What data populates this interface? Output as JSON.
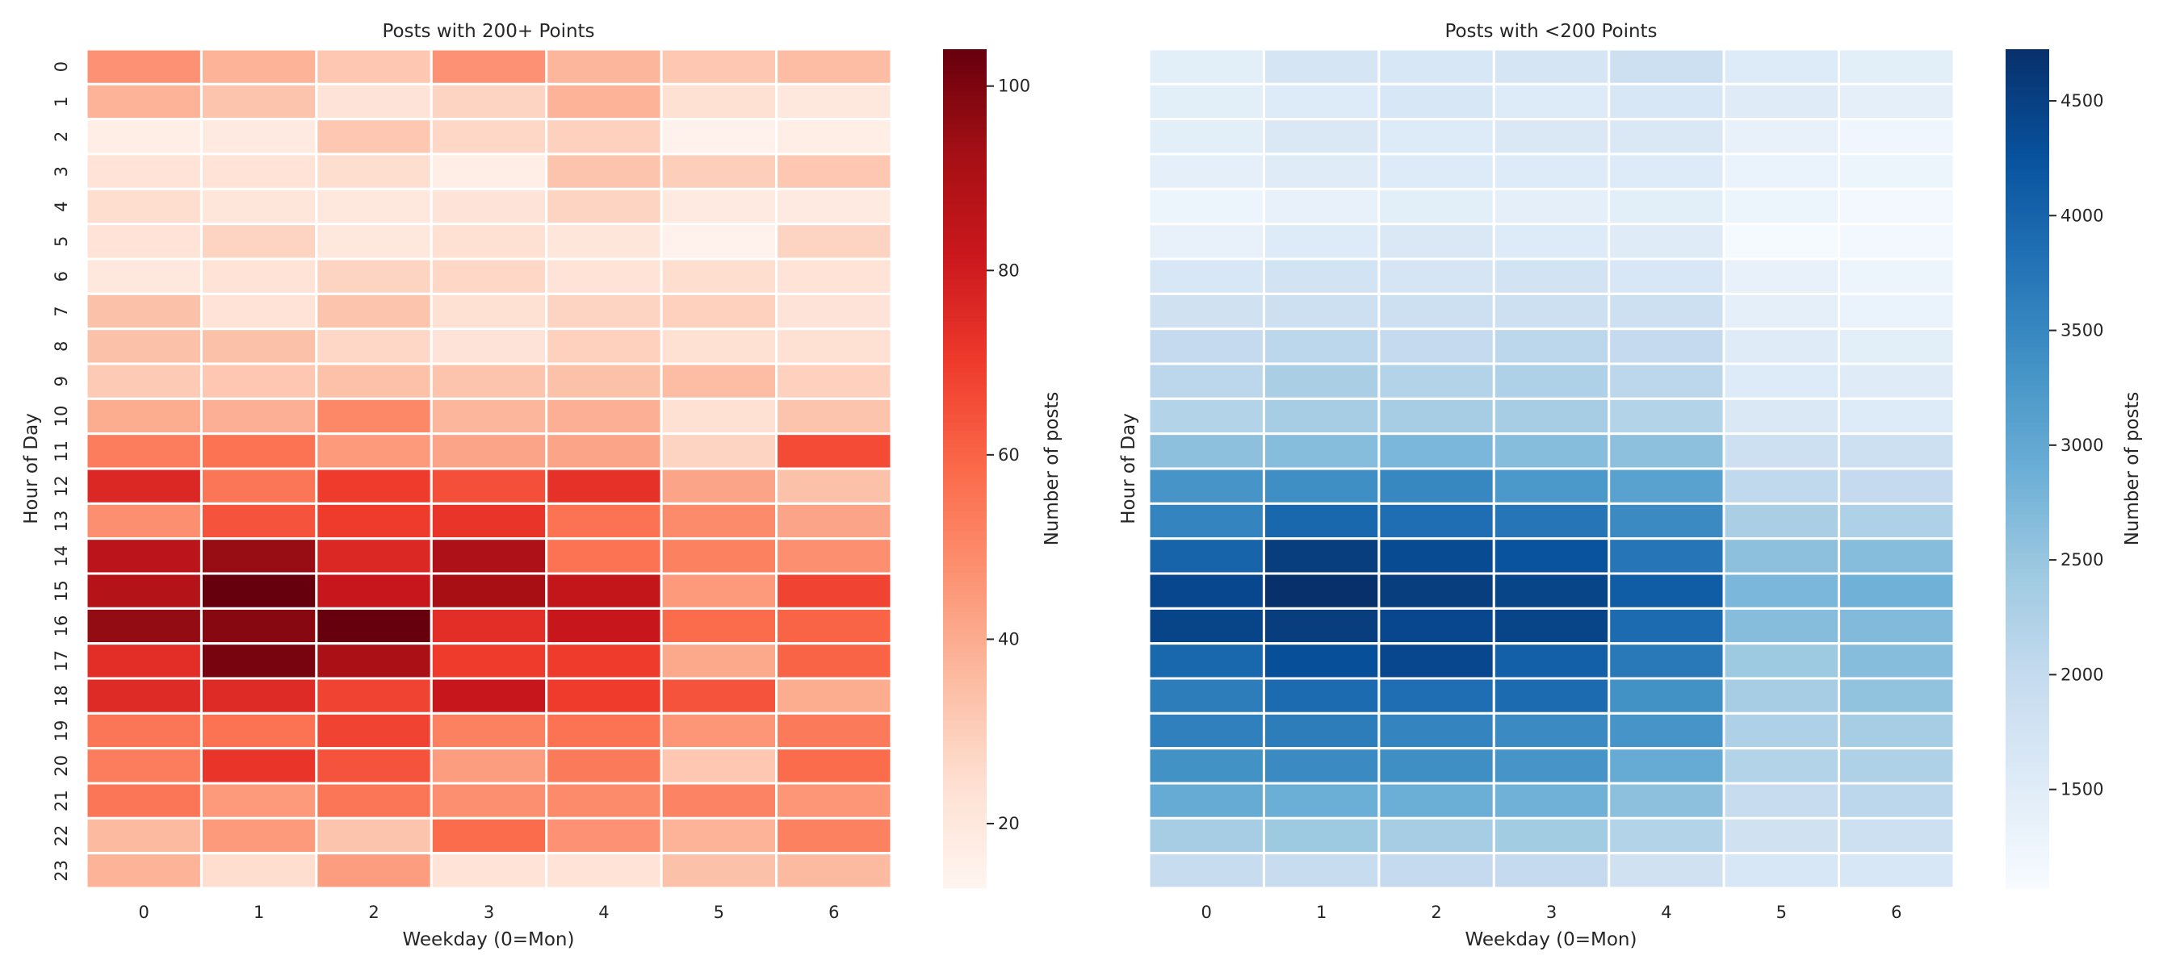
{
  "chart_data": [
    {
      "type": "heatmap",
      "title": "Posts with 200+ Points",
      "xlabel": "Weekday (0=Mon)",
      "ylabel": "Hour of Day",
      "colorbar_label": "Number of posts",
      "colormap": "Reds",
      "colormap_stops": [
        "#fff5f0",
        "#fee0d2",
        "#fcbba1",
        "#fc9272",
        "#fb6a4a",
        "#ef3b2c",
        "#cb181d",
        "#a50f15",
        "#67000d"
      ],
      "vmin": 13,
      "vmax": 104,
      "colorbar_ticks": [
        20,
        40,
        60,
        80,
        100
      ],
      "x_ticks": [
        "0",
        "1",
        "2",
        "3",
        "4",
        "5",
        "6"
      ],
      "y_ticks": [
        "0",
        "1",
        "2",
        "3",
        "4",
        "5",
        "6",
        "7",
        "8",
        "9",
        "10",
        "11",
        "12",
        "13",
        "14",
        "15",
        "16",
        "17",
        "18",
        "19",
        "20",
        "21",
        "22",
        "23"
      ],
      "show_y_ticks": true,
      "values": [
        [
          47,
          38,
          32,
          47,
          37,
          32,
          35
        ],
        [
          38,
          33,
          22,
          28,
          38,
          24,
          20
        ],
        [
          17,
          19,
          32,
          27,
          29,
          15,
          17
        ],
        [
          23,
          23,
          25,
          17,
          33,
          30,
          32
        ],
        [
          25,
          21,
          20,
          22,
          28,
          19,
          19
        ],
        [
          23,
          28,
          20,
          24,
          21,
          15,
          28
        ],
        [
          20,
          23,
          28,
          27,
          23,
          25,
          23
        ],
        [
          34,
          23,
          33,
          24,
          28,
          29,
          22
        ],
        [
          34,
          34,
          27,
          22,
          29,
          24,
          24
        ],
        [
          31,
          32,
          34,
          33,
          34,
          35,
          29
        ],
        [
          40,
          39,
          50,
          37,
          39,
          24,
          33
        ],
        [
          53,
          56,
          45,
          42,
          42,
          28,
          66
        ],
        [
          76,
          55,
          70,
          65,
          73,
          42,
          34
        ],
        [
          48,
          64,
          70,
          72,
          56,
          49,
          42
        ],
        [
          86,
          95,
          76,
          90,
          56,
          52,
          48
        ],
        [
          88,
          104,
          82,
          92,
          84,
          45,
          68
        ],
        [
          96,
          98,
          104,
          74,
          82,
          58,
          60
        ],
        [
          74,
          101,
          91,
          70,
          70,
          41,
          60
        ],
        [
          75,
          75,
          68,
          82,
          70,
          64,
          40
        ],
        [
          55,
          56,
          68,
          52,
          56,
          46,
          54
        ],
        [
          53,
          72,
          64,
          44,
          54,
          32,
          58
        ],
        [
          55,
          45,
          55,
          48,
          49,
          51,
          46
        ],
        [
          36,
          45,
          33,
          58,
          47,
          38,
          52
        ],
        [
          38,
          25,
          44,
          23,
          23,
          34,
          36
        ]
      ]
    },
    {
      "type": "heatmap",
      "title": "Posts with <200 Points",
      "xlabel": "Weekday (0=Mon)",
      "ylabel": "Hour of Day",
      "colorbar_label": "Number of posts",
      "colormap": "Blues",
      "colormap_stops": [
        "#f7fbff",
        "#deebf7",
        "#c6dbef",
        "#9ecae1",
        "#6baed6",
        "#4292c6",
        "#2171b5",
        "#08519c",
        "#08306b"
      ],
      "vmin": 1070,
      "vmax": 4725,
      "colorbar_ticks": [
        1500,
        2000,
        2500,
        3000,
        3500,
        4000,
        4500
      ],
      "x_ticks": [
        "0",
        "1",
        "2",
        "3",
        "4",
        "5",
        "6"
      ],
      "show_y_ticks": false,
      "values": [
        [
          1450,
          1700,
          1650,
          1700,
          1850,
          1550,
          1450
        ],
        [
          1450,
          1550,
          1650,
          1550,
          1650,
          1500,
          1400
        ],
        [
          1450,
          1600,
          1550,
          1600,
          1600,
          1350,
          1200
        ],
        [
          1400,
          1500,
          1550,
          1550,
          1550,
          1300,
          1250
        ],
        [
          1250,
          1350,
          1450,
          1400,
          1450,
          1250,
          1150
        ],
        [
          1350,
          1550,
          1600,
          1550,
          1500,
          1100,
          1150
        ],
        [
          1650,
          1750,
          1700,
          1750,
          1650,
          1350,
          1250
        ],
        [
          1800,
          1850,
          1850,
          1850,
          1850,
          1400,
          1300
        ],
        [
          2000,
          2100,
          2000,
          2100,
          2000,
          1500,
          1450
        ],
        [
          2100,
          2300,
          2200,
          2250,
          2100,
          1550,
          1500
        ],
        [
          2200,
          2350,
          2350,
          2350,
          2200,
          1600,
          1550
        ],
        [
          2600,
          2650,
          2750,
          2650,
          2600,
          1850,
          1850
        ],
        [
          3300,
          3400,
          3500,
          3250,
          3100,
          2050,
          2000
        ],
        [
          3550,
          3950,
          3850,
          3750,
          3450,
          2300,
          2250
        ],
        [
          4000,
          4550,
          4350,
          4250,
          3750,
          2600,
          2650
        ],
        [
          4400,
          4725,
          4550,
          4450,
          4100,
          2750,
          2850
        ],
        [
          4450,
          4550,
          4400,
          4450,
          3900,
          2650,
          2700
        ],
        [
          3950,
          4300,
          4400,
          4050,
          3700,
          2450,
          2650
        ],
        [
          3650,
          3900,
          3850,
          3900,
          3350,
          2350,
          2550
        ],
        [
          3600,
          3650,
          3550,
          3450,
          3300,
          2250,
          2350
        ],
        [
          3350,
          3450,
          3400,
          3300,
          2950,
          2200,
          2250
        ],
        [
          2950,
          2900,
          2900,
          2850,
          2600,
          1950,
          2100
        ],
        [
          2350,
          2450,
          2350,
          2400,
          2200,
          1800,
          1850
        ],
        [
          1950,
          1950,
          2000,
          2000,
          1800,
          1650,
          1650
        ]
      ]
    }
  ]
}
